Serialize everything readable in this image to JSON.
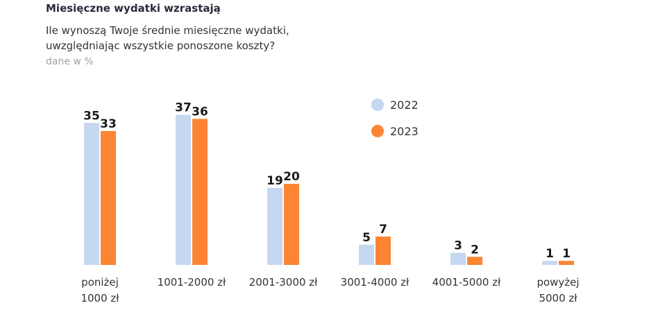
{
  "header": {
    "title": "Miesięczne wydatki wzrastają",
    "subtitle_line1": "Ile wynoszą Twoje średnie miesięczne wydatki,",
    "subtitle_line2": "uwzględniając wszystkie ponoszone koszty?",
    "unit_note": "dane w %"
  },
  "colors": {
    "series_2022": "#c6d7f0",
    "series_2023": "#fb8533"
  },
  "chart_data": {
    "type": "bar",
    "title": "Miesięczne wydatki wzrastają",
    "categories": [
      [
        "poniżej",
        "1000 zł"
      ],
      [
        "1001-2000 zł"
      ],
      [
        "2001-3000 zł"
      ],
      [
        "3001-4000 zł"
      ],
      [
        "4001-5000 zł"
      ],
      [
        "powyżej",
        "5000 zł"
      ]
    ],
    "series": [
      {
        "name": "2022",
        "values": [
          35,
          37,
          19,
          5,
          3,
          1
        ]
      },
      {
        "name": "2023",
        "values": [
          33,
          36,
          20,
          7,
          2,
          1
        ]
      }
    ],
    "ylim": [
      0,
      37
    ],
    "grid": false,
    "legend": "top-right"
  }
}
